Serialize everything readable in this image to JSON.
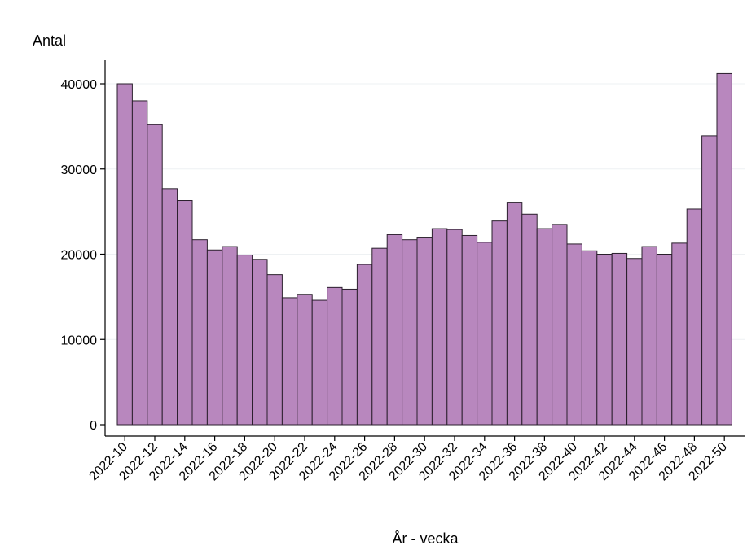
{
  "chart_data": {
    "type": "bar",
    "title": "",
    "ylabel": "Antal",
    "xlabel": "År - vecka",
    "ylim": [
      0,
      42000
    ],
    "yticks": [
      0,
      10000,
      20000,
      30000,
      40000
    ],
    "grid": true,
    "legend": "none",
    "colors": {
      "bar_fill": "#b887be",
      "bar_stroke": "#2a1f2c",
      "grid": "#eef1f3",
      "axis": "#000000"
    },
    "categories": [
      "2022-10",
      "2022-11",
      "2022-12",
      "2022-13",
      "2022-14",
      "2022-15",
      "2022-16",
      "2022-17",
      "2022-18",
      "2022-19",
      "2022-20",
      "2022-21",
      "2022-22",
      "2022-23",
      "2022-24",
      "2022-25",
      "2022-26",
      "2022-27",
      "2022-28",
      "2022-29",
      "2022-30",
      "2022-31",
      "2022-32",
      "2022-33",
      "2022-34",
      "2022-35",
      "2022-36",
      "2022-37",
      "2022-38",
      "2022-39",
      "2022-40",
      "2022-41",
      "2022-42",
      "2022-43",
      "2022-44",
      "2022-45",
      "2022-46",
      "2022-47",
      "2022-48",
      "2022-49",
      "2022-50"
    ],
    "xtick_labels": [
      "2022-10",
      "2022-12",
      "2022-14",
      "2022-16",
      "2022-18",
      "2022-20",
      "2022-22",
      "2022-24",
      "2022-26",
      "2022-28",
      "2022-30",
      "2022-32",
      "2022-34",
      "2022-36",
      "2022-38",
      "2022-40",
      "2022-42",
      "2022-44",
      "2022-46",
      "2022-48",
      "2022-50"
    ],
    "values": [
      40000,
      38000,
      35200,
      27700,
      26300,
      21700,
      20500,
      20900,
      19900,
      19400,
      17600,
      14900,
      15300,
      14600,
      16100,
      15900,
      18800,
      20700,
      22300,
      21700,
      22000,
      23000,
      22900,
      22200,
      21400,
      23900,
      26100,
      24700,
      23000,
      23500,
      21200,
      20400,
      20000,
      20100,
      19500,
      20900,
      20000,
      21300,
      25300,
      33900,
      41200
    ]
  }
}
